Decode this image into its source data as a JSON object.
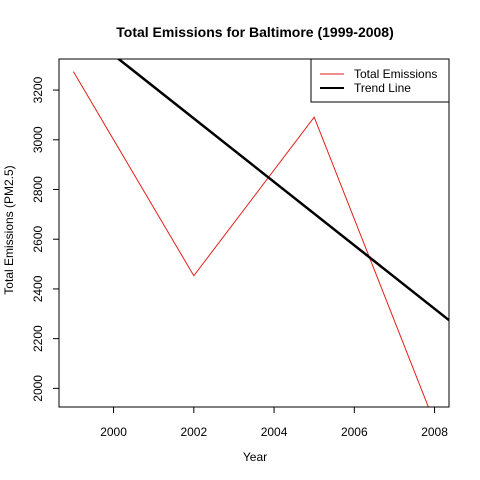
{
  "chart_data": {
    "type": "line",
    "title": "Total Emissions for Baltimore (1999-2008)",
    "xlabel": "Year",
    "ylabel": "Total Emissions (PM2.5)",
    "xlim": [
      1998.64,
      2008.36
    ],
    "ylim": [
      1925,
      3325
    ],
    "x_ticks": [
      2000,
      2002,
      2004,
      2006,
      2008
    ],
    "y_ticks": [
      2000,
      2200,
      2400,
      2600,
      2800,
      3000,
      3200
    ],
    "x_tick_labels": [
      "2000",
      "2002",
      "2004",
      "2006",
      "2008"
    ],
    "y_tick_labels": [
      "2000",
      "2200",
      "2400",
      "2600",
      "2800",
      "3000",
      "3200"
    ],
    "grid": false,
    "legend_position": "top-right",
    "series": [
      {
        "name": "Total Emissions",
        "color": "#e0201b",
        "line_style": "thin",
        "x": [
          1999,
          2002,
          2005,
          2008
        ],
        "y": [
          3274,
          2453,
          3091,
          1862
        ]
      },
      {
        "name": "Trend Line",
        "color": "#000000",
        "line_style": "thick",
        "type": "abline",
        "intercept": 258541,
        "slope": -127.6
      }
    ]
  }
}
